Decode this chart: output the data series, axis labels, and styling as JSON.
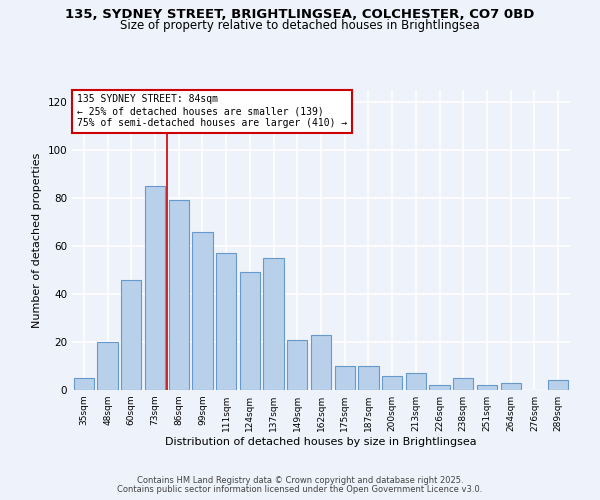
{
  "title_line1": "135, SYDNEY STREET, BRIGHTLINGSEA, COLCHESTER, CO7 0BD",
  "title_line2": "Size of property relative to detached houses in Brightlingsea",
  "xlabel": "Distribution of detached houses by size in Brightlingsea",
  "ylabel": "Number of detached properties",
  "bar_labels": [
    "35sqm",
    "48sqm",
    "60sqm",
    "73sqm",
    "86sqm",
    "99sqm",
    "111sqm",
    "124sqm",
    "137sqm",
    "149sqm",
    "162sqm",
    "175sqm",
    "187sqm",
    "200sqm",
    "213sqm",
    "226sqm",
    "238sqm",
    "251sqm",
    "264sqm",
    "276sqm",
    "289sqm"
  ],
  "bar_values": [
    5,
    20,
    46,
    85,
    79,
    66,
    57,
    49,
    55,
    21,
    23,
    10,
    10,
    6,
    7,
    2,
    5,
    2,
    3,
    0,
    4
  ],
  "bar_color": "#b8d0ea",
  "bar_edge_color": "#6699cc",
  "vline_color": "#cc0000",
  "vline_index": 3.5,
  "annotation_title": "135 SYDNEY STREET: 84sqm",
  "annotation_line2": "← 25% of detached houses are smaller (139)",
  "annotation_line3": "75% of semi-detached houses are larger (410) →",
  "annotation_box_color": "#cc0000",
  "ylim": [
    0,
    125
  ],
  "yticks": [
    0,
    20,
    40,
    60,
    80,
    100,
    120
  ],
  "background_color": "#eef2fa",
  "grid_color": "#ffffff",
  "footer1": "Contains HM Land Registry data © Crown copyright and database right 2025.",
  "footer2": "Contains public sector information licensed under the Open Government Licence v3.0."
}
